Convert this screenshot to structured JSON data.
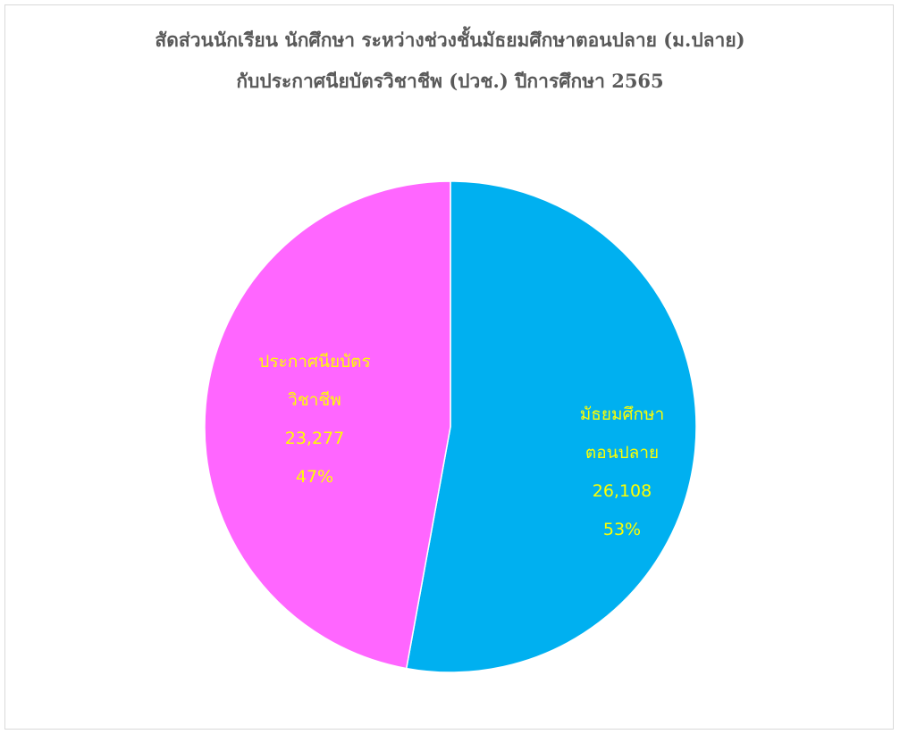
{
  "chart_data": {
    "type": "pie",
    "title": "สัดส่วนนักเรียน นักศึกษา ระหว่างช่วงชั้นมัธยมศึกษาตอนปลาย (ม.ปลาย)",
    "subtitle": "กับประกาศนียบัตรวิชาชีพ (ปวช.) ปีการศึกษา 2565",
    "start_angle_deg": 0,
    "direction": "clockwise",
    "legend": "none",
    "slices": [
      {
        "label_lines": [
          "มัธยมศึกษา",
          "ตอนปลาย"
        ],
        "value": 26108,
        "value_text": "26,108",
        "percent_text": "53%",
        "color": "#00B0F0",
        "label_color": "#FFFF00"
      },
      {
        "label_lines": [
          "ประกาศนียบัตร",
          "วิชาชีพ"
        ],
        "value": 23277,
        "value_text": "23,277",
        "percent_text": "47%",
        "color": "#FF66FF",
        "label_color": "#FFFF00"
      }
    ]
  }
}
